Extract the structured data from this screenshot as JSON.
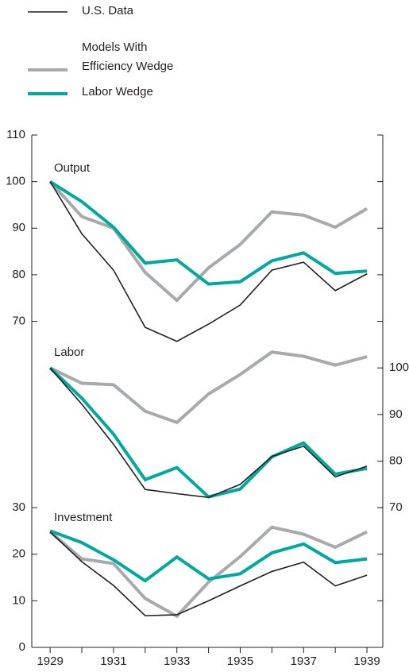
{
  "chart_data": {
    "type": "line",
    "legend": {
      "title": "Models With"
    },
    "series": [
      {
        "name": "U.S. Data",
        "color": "#231f20"
      },
      {
        "name": "Efficiency Wedge",
        "color": "#a7a9ac"
      },
      {
        "name": "Labor Wedge",
        "color": "#00a99d"
      }
    ],
    "x": [
      1929,
      1930,
      1931,
      1932,
      1933,
      1934,
      1935,
      1936,
      1937,
      1938,
      1939
    ],
    "xlim": [
      1928.42,
      1939.5
    ],
    "xticks": [
      1929,
      1931,
      1933,
      1935,
      1937,
      1939
    ],
    "ylim": [
      0,
      110
    ],
    "yticks": [
      0,
      10,
      20,
      30,
      70,
      80,
      90,
      100,
      110
    ],
    "y2lim": [
      40,
      150
    ],
    "y2ticks": [
      70,
      80,
      90,
      100
    ],
    "panels": [
      {
        "title": "Output",
        "axis": "y",
        "values": [
          [
            100,
            88.8,
            81,
            68.7,
            65.7,
            69.4,
            73.5,
            81,
            82.7,
            76.6,
            80.2
          ],
          [
            100,
            92.5,
            90,
            80.5,
            74.5,
            81.5,
            86.5,
            93.5,
            92.8,
            90.2,
            94.2
          ],
          [
            100,
            95.7,
            90.2,
            82.5,
            83.2,
            78,
            78.5,
            83,
            84.7,
            80.3,
            80.8
          ]
        ]
      },
      {
        "title": "Labor",
        "axis": "y2",
        "values": [
          [
            100,
            92.2,
            83.6,
            73.9,
            73,
            72.2,
            75,
            81,
            83.2,
            76.6,
            78.9
          ],
          [
            100,
            96.7,
            96.4,
            90.7,
            88.3,
            94.4,
            98.6,
            103.4,
            102.5,
            100.6,
            102.4
          ],
          [
            100,
            93.5,
            85.8,
            76,
            78.6,
            72.3,
            74,
            80.9,
            83.9,
            77.2,
            78.4
          ]
        ]
      },
      {
        "title": "Investment",
        "axis": "y",
        "values": [
          [
            24.8,
            18.4,
            13.3,
            6.8,
            7,
            10,
            13.2,
            16.3,
            18.3,
            13.2,
            15.5
          ],
          [
            24.8,
            19,
            18,
            10.5,
            6.7,
            14,
            19.5,
            25.8,
            24.3,
            21.5,
            24.8
          ],
          [
            25,
            22.5,
            18.8,
            14.3,
            19.4,
            14.7,
            15.8,
            20.3,
            22.2,
            18.2,
            19
          ]
        ]
      }
    ]
  }
}
